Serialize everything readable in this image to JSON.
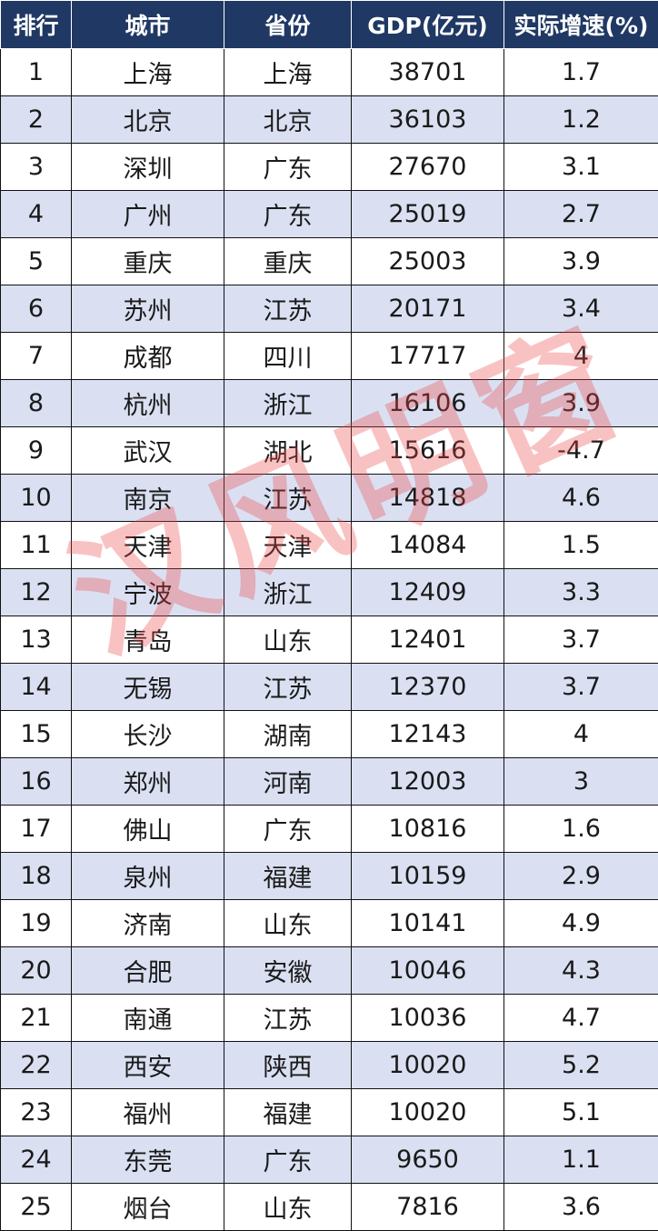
{
  "table": {
    "headers": [
      "排行",
      "城市",
      "省份",
      "GDP(亿元)",
      "实际增速(%)"
    ],
    "rows": [
      [
        "1",
        "上海",
        "上海",
        "38701",
        "1.7"
      ],
      [
        "2",
        "北京",
        "北京",
        "36103",
        "1.2"
      ],
      [
        "3",
        "深圳",
        "广东",
        "27670",
        "3.1"
      ],
      [
        "4",
        "广州",
        "广东",
        "25019",
        "2.7"
      ],
      [
        "5",
        "重庆",
        "重庆",
        "25003",
        "3.9"
      ],
      [
        "6",
        "苏州",
        "江苏",
        "20171",
        "3.4"
      ],
      [
        "7",
        "成都",
        "四川",
        "17717",
        "4"
      ],
      [
        "8",
        "杭州",
        "浙江",
        "16106",
        "3.9"
      ],
      [
        "9",
        "武汉",
        "湖北",
        "15616",
        "-4.7"
      ],
      [
        "10",
        "南京",
        "江苏",
        "14818",
        "4.6"
      ],
      [
        "11",
        "天津",
        "天津",
        "14084",
        "1.5"
      ],
      [
        "12",
        "宁波",
        "浙江",
        "12409",
        "3.3"
      ],
      [
        "13",
        "青岛",
        "山东",
        "12401",
        "3.7"
      ],
      [
        "14",
        "无锡",
        "江苏",
        "12370",
        "3.7"
      ],
      [
        "15",
        "长沙",
        "湖南",
        "12143",
        "4"
      ],
      [
        "16",
        "郑州",
        "河南",
        "12003",
        "3"
      ],
      [
        "17",
        "佛山",
        "广东",
        "10816",
        "1.6"
      ],
      [
        "18",
        "泉州",
        "福建",
        "10159",
        "2.9"
      ],
      [
        "19",
        "济南",
        "山东",
        "10141",
        "4.9"
      ],
      [
        "20",
        "合肥",
        "安徽",
        "10046",
        "4.3"
      ],
      [
        "21",
        "南通",
        "江苏",
        "10036",
        "4.7"
      ],
      [
        "22",
        "西安",
        "陕西",
        "10020",
        "5.2"
      ],
      [
        "23",
        "福州",
        "福建",
        "10020",
        "5.1"
      ],
      [
        "24",
        "东莞",
        "广东",
        "9650",
        "1.1"
      ],
      [
        "25",
        "烟台",
        "山东",
        "7816",
        "3.6"
      ]
    ]
  },
  "watermark": {
    "text": "汉风明窗"
  },
  "colors": {
    "header_bg": "#203864",
    "header_text": "#ffffff",
    "stripe_bg": "#dae0f2",
    "watermark": "#ee4646"
  }
}
